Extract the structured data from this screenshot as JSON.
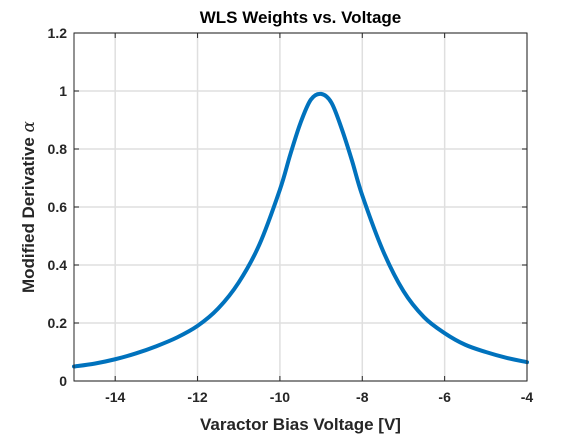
{
  "chart_data": {
    "type": "line",
    "title": "WLS Weights vs. Voltage",
    "xlabel": "Varactor Bias Voltage [V]",
    "ylabel_text": "Modified Derivative ",
    "ylabel_symbol": "α",
    "xlim": [
      -15,
      -4
    ],
    "ylim": [
      0,
      1.2
    ],
    "xticks": [
      -14,
      -12,
      -10,
      -8,
      -6,
      -4
    ],
    "yticks": [
      0,
      0.2,
      0.4,
      0.6,
      0.8,
      1,
      1.2
    ],
    "grid": true,
    "series": [
      {
        "color": "#0072BD",
        "x": [
          -15,
          -14.5,
          -14,
          -13.5,
          -13,
          -12.5,
          -12,
          -11.5,
          -11,
          -10.5,
          -10,
          -9.75,
          -9.5,
          -9.25,
          -9,
          -8.75,
          -8.5,
          -8.25,
          -8,
          -7.5,
          -7,
          -6.5,
          -6,
          -5.5,
          -5,
          -4.5,
          -4
        ],
        "y": [
          0.05,
          0.06,
          0.075,
          0.095,
          0.12,
          0.15,
          0.19,
          0.25,
          0.34,
          0.47,
          0.66,
          0.78,
          0.89,
          0.97,
          0.99,
          0.96,
          0.87,
          0.76,
          0.64,
          0.45,
          0.31,
          0.22,
          0.165,
          0.125,
          0.1,
          0.08,
          0.065
        ]
      }
    ]
  }
}
